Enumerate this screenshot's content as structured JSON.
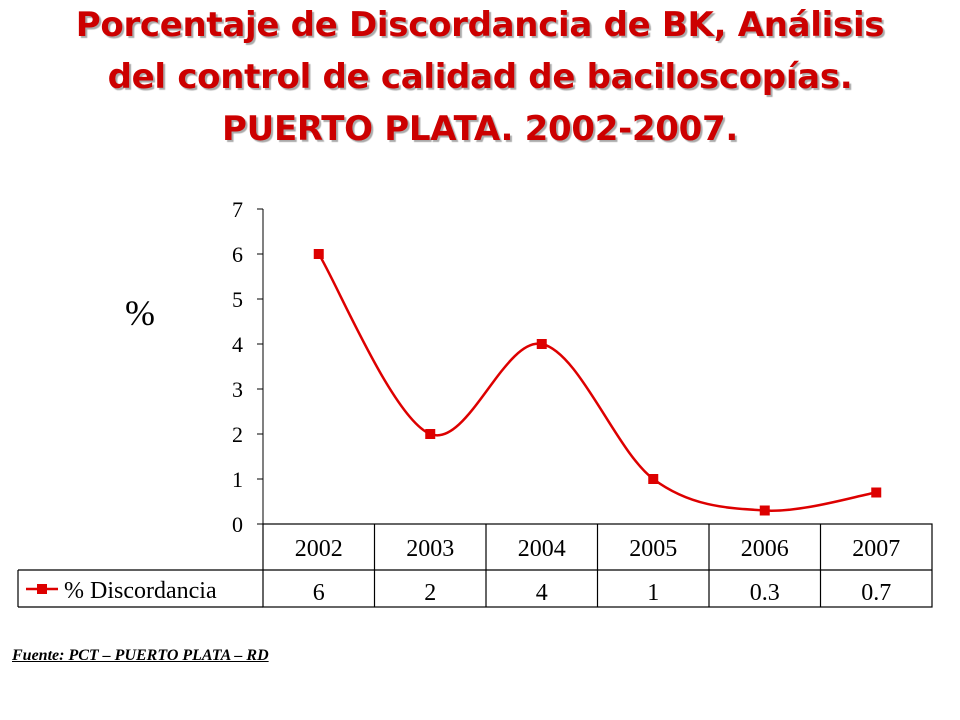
{
  "title_lines": [
    "Porcentaje de Discordancia de BK, Análisis",
    "del control de calidad de baciloscopías.",
    "PUERTO PLATA. 2002-2007."
  ],
  "source": "Fuente: PCT – PUERTO PLATA – RD",
  "chart_data": {
    "type": "line",
    "ylabel": "%",
    "xlabel": "",
    "categories": [
      "2002",
      "2003",
      "2004",
      "2005",
      "2006",
      "2007"
    ],
    "series": [
      {
        "name": "% Discordancia",
        "values": [
          6,
          2,
          4,
          1,
          0.3,
          0.7
        ],
        "labels": [
          "6",
          "2",
          "4",
          "1",
          "0.3",
          "0.7"
        ]
      }
    ],
    "y_ticks": [
      "0",
      "1",
      "2",
      "3",
      "4",
      "5",
      "6",
      "7"
    ],
    "ylim": [
      0,
      7
    ],
    "smoothed": true,
    "grid": false,
    "legend": "data-table",
    "colors": {
      "series": "#dd0000",
      "title": "#cc0000"
    }
  }
}
